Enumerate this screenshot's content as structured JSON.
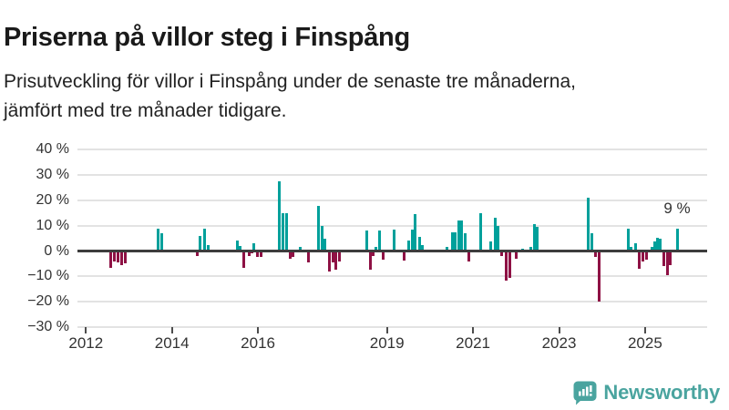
{
  "chart_data": {
    "type": "bar",
    "title": "Priserna på villor steg i Finspång",
    "subtitle_lines": [
      "Prisutveckling för villor i Finspång under de senaste tre månaderna,",
      "jämfört med tre månader tidigare."
    ],
    "unit": "%",
    "grid": true,
    "x_axis": {
      "ticks": [
        2012,
        2014,
        2016,
        2019,
        2021,
        2023,
        2025
      ]
    },
    "y_axis": {
      "range": [
        -30,
        40
      ],
      "ticks": [
        {
          "label": "40 %",
          "value": 40
        },
        {
          "label": "30 %",
          "value": 30
        },
        {
          "label": "20 %",
          "value": 20
        },
        {
          "label": "10 %",
          "value": 10
        },
        {
          "label": "0 %",
          "value": 0
        },
        {
          "label": "−10 %",
          "value": -10
        },
        {
          "label": "−20 %",
          "value": -20
        },
        {
          "label": "−30 %",
          "value": -30
        }
      ]
    },
    "points": [
      [
        2012.58,
        -6.5
      ],
      [
        2012.66,
        -4
      ],
      [
        2012.75,
        -4.5
      ],
      [
        2012.83,
        -5.5
      ],
      [
        2012.92,
        -5
      ],
      [
        2013.68,
        9
      ],
      [
        2013.76,
        7
      ],
      [
        2014.58,
        -2
      ],
      [
        2014.66,
        6
      ],
      [
        2014.76,
        9
      ],
      [
        2014.85,
        2.5
      ],
      [
        2015.51,
        4
      ],
      [
        2015.59,
        2
      ],
      [
        2015.66,
        -6.5
      ],
      [
        2015.79,
        -2
      ],
      [
        2015.85,
        -1
      ],
      [
        2015.91,
        3
      ],
      [
        2015.98,
        -2.5
      ],
      [
        2016.08,
        -2.5
      ],
      [
        2016.5,
        27.5
      ],
      [
        2016.59,
        15
      ],
      [
        2016.66,
        15
      ],
      [
        2016.75,
        -3
      ],
      [
        2016.82,
        -2.5
      ],
      [
        2016.99,
        1.8
      ],
      [
        2017.17,
        -4.5
      ],
      [
        2017.4,
        18
      ],
      [
        2017.48,
        10
      ],
      [
        2017.56,
        5
      ],
      [
        2017.66,
        -8
      ],
      [
        2017.74,
        -4.5
      ],
      [
        2017.81,
        -7.5
      ],
      [
        2017.89,
        -4
      ],
      [
        2018.53,
        8
      ],
      [
        2018.62,
        -7.5
      ],
      [
        2018.67,
        -2
      ],
      [
        2018.73,
        1.5
      ],
      [
        2018.83,
        8
      ],
      [
        2018.92,
        -3.5
      ],
      [
        2019.17,
        8.5
      ],
      [
        2019.39,
        -3.8
      ],
      [
        2019.51,
        4
      ],
      [
        2019.58,
        8.5
      ],
      [
        2019.66,
        14.5
      ],
      [
        2019.75,
        5.5
      ],
      [
        2019.83,
        2.3
      ],
      [
        2020.4,
        1.5
      ],
      [
        2020.51,
        7.5
      ],
      [
        2020.59,
        7.5
      ],
      [
        2020.66,
        12
      ],
      [
        2020.74,
        12
      ],
      [
        2020.82,
        7
      ],
      [
        2020.91,
        -4.2
      ],
      [
        2021.17,
        15
      ],
      [
        2021.42,
        3.7
      ],
      [
        2021.51,
        13
      ],
      [
        2021.59,
        10
      ],
      [
        2021.67,
        -2
      ],
      [
        2021.77,
        -11.5
      ],
      [
        2021.85,
        -10.5
      ],
      [
        2022.01,
        -3.2
      ],
      [
        2022.16,
        1
      ],
      [
        2022.34,
        1.5
      ],
      [
        2022.42,
        10.5
      ],
      [
        2022.49,
        9.5
      ],
      [
        2023.68,
        21
      ],
      [
        2023.76,
        7
      ],
      [
        2023.85,
        -2.5
      ],
      [
        2023.93,
        -20
      ],
      [
        2024.61,
        9
      ],
      [
        2024.68,
        1.5
      ],
      [
        2024.77,
        3
      ],
      [
        2024.86,
        -7
      ],
      [
        2024.94,
        -4.2
      ],
      [
        2025.03,
        -3.5
      ],
      [
        2025.17,
        1.8
      ],
      [
        2025.23,
        3.7
      ],
      [
        2025.29,
        5.4
      ],
      [
        2025.35,
        4.9
      ],
      [
        2025.43,
        -5.8
      ],
      [
        2025.51,
        -9.5
      ],
      [
        2025.59,
        -5.4
      ],
      [
        2025.75,
        9
      ]
    ],
    "annotation": {
      "label": "9 %",
      "value": 9,
      "x": 2025.75
    },
    "colors": {
      "positive": "#00a09b",
      "negative": "#8e1144"
    },
    "legend": "none"
  },
  "footer": {
    "brand": "Newsworthy",
    "brand_color": "#4aa49f"
  }
}
